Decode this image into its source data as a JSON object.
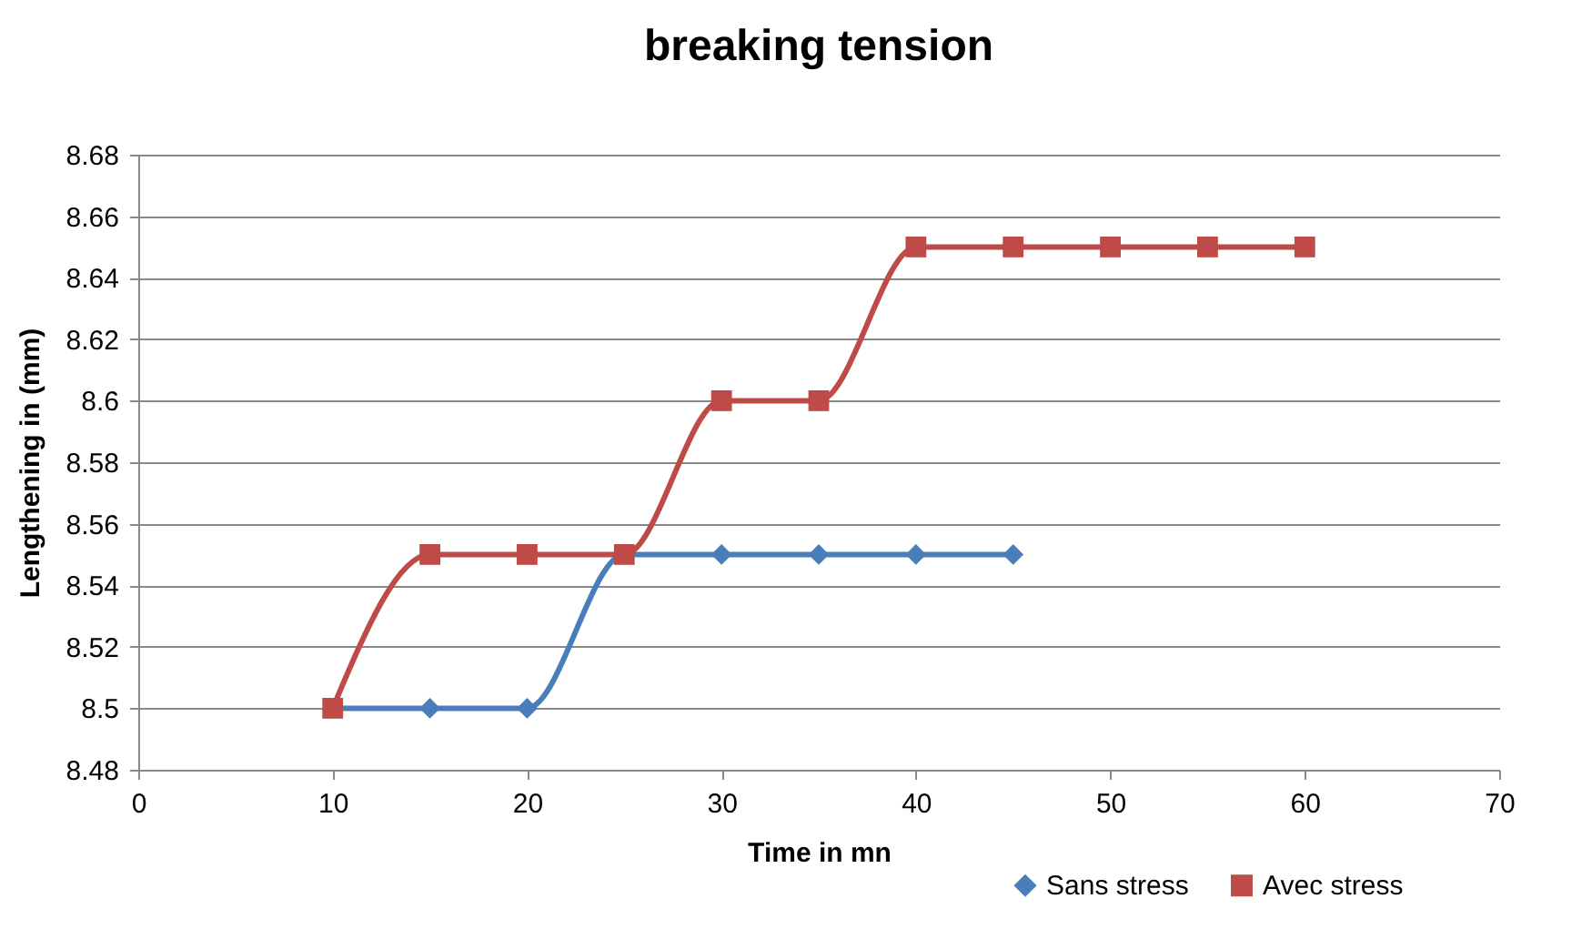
{
  "chart_data": {
    "type": "line",
    "title": "breaking tension",
    "xlabel": "Time in mn",
    "ylabel": "Lengthening in (mm)",
    "xlim": [
      0,
      70
    ],
    "xticks": [
      0,
      10,
      20,
      30,
      40,
      50,
      60,
      70
    ],
    "ylim": [
      8.48,
      8.68
    ],
    "yticks": [
      8.48,
      8.5,
      8.52,
      8.54,
      8.56,
      8.58,
      8.6,
      8.62,
      8.64,
      8.66,
      8.68
    ],
    "grid": "y",
    "legend": "bottom right",
    "series": [
      {
        "name": "Sans stress",
        "color": "#4a7ebb",
        "marker": "diamond",
        "x": [
          10,
          15,
          20,
          25,
          30,
          35,
          40,
          45
        ],
        "values": [
          8.5,
          8.5,
          8.5,
          8.55,
          8.55,
          8.55,
          8.55,
          8.55
        ]
      },
      {
        "name": "Avec stress",
        "color": "#be4b48",
        "marker": "square",
        "x": [
          10,
          15,
          20,
          25,
          30,
          35,
          40,
          45,
          50,
          55,
          60
        ],
        "values": [
          8.5,
          8.55,
          8.55,
          8.55,
          8.6,
          8.6,
          8.65,
          8.65,
          8.65,
          8.65,
          8.65
        ]
      }
    ]
  }
}
